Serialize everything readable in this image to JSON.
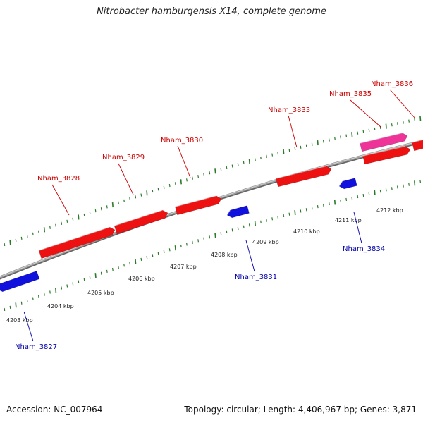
{
  "title": "Nitrobacter hamburgensis X14, complete genome",
  "footer": {
    "accession": "Accession: NC_007964",
    "summary": "Topology: circular; Length: 4,406,967 bp; Genes: 3,871"
  },
  "colors": {
    "forward_gene": "#ee1111",
    "reverse_gene": "#1111dd",
    "highlight_gene": "#ee3399",
    "backbone": "#8c8c8c",
    "tick": "#2a7a2a",
    "forward_label": "#cc0000",
    "reverse_label": "#0000aa"
  },
  "kbp_labels": [
    "4203 kbp",
    "4204 kbp",
    "4205 kbp",
    "4206 kbp",
    "4207 kbp",
    "4208 kbp",
    "4209 kbp",
    "4210 kbp",
    "4211 kbp",
    "4212 kbp"
  ],
  "genes": [
    {
      "name": "Nham_3827",
      "strand": "reverse"
    },
    {
      "name": "Nham_3828",
      "strand": "forward"
    },
    {
      "name": "Nham_3829",
      "strand": "forward"
    },
    {
      "name": "Nham_3830",
      "strand": "forward"
    },
    {
      "name": "Nham_3831",
      "strand": "reverse"
    },
    {
      "name": "Nham_3833",
      "strand": "forward"
    },
    {
      "name": "Nham_3834",
      "strand": "reverse"
    },
    {
      "name": "Nham_3835",
      "strand": "forward"
    },
    {
      "name": "Nham_3836",
      "strand": "forward"
    }
  ]
}
